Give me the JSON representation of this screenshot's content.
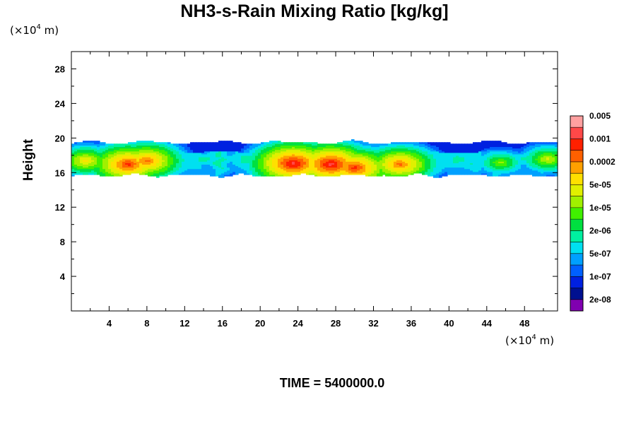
{
  "chart_data": {
    "type": "heatmap",
    "title": "NH3-s-Rain Mixing Ratio [kg/kg]",
    "xlabel": "",
    "ylabel": "Height",
    "x_unit": {
      "prefix": "(×10",
      "exp": "4",
      "suffix": " m)"
    },
    "y_unit": {
      "prefix": "(×10",
      "exp": "4",
      "suffix": " m)"
    },
    "xlim": [
      0,
      51.5
    ],
    "ylim": [
      0,
      30
    ],
    "xticks": [
      4,
      8,
      12,
      16,
      20,
      24,
      28,
      32,
      36,
      40,
      44,
      48
    ],
    "yticks": [
      4,
      8,
      12,
      16,
      20,
      24,
      28
    ],
    "time_label": "TIME = 5400000.0",
    "colorbar": {
      "colors": [
        "#8000b0",
        "#001090",
        "#0020e0",
        "#0060ff",
        "#00a0ff",
        "#00e0f0",
        "#00f0a0",
        "#00e040",
        "#40f000",
        "#a0f000",
        "#e0f000",
        "#ffe000",
        "#ffa000",
        "#ff6000",
        "#ff2000",
        "#ff4848",
        "#ffa0a0"
      ],
      "labels": [
        "2e-08",
        "1e-07",
        "5e-07",
        "2e-06",
        "1e-05",
        "5e-05",
        "0.0002",
        "0.001",
        "0.005"
      ]
    },
    "band": {
      "y_bottom_approx": 15.5,
      "y_top_approx": 19.8,
      "hotspots": [
        {
          "x": 6.0,
          "y": 17.0,
          "level": 14
        },
        {
          "x": 8.0,
          "y": 17.4,
          "level": 13
        },
        {
          "x": 1.5,
          "y": 17.4,
          "level": 11
        },
        {
          "x": 23.5,
          "y": 17.1,
          "level": 15
        },
        {
          "x": 27.5,
          "y": 17.0,
          "level": 15
        },
        {
          "x": 30.0,
          "y": 16.6,
          "level": 14
        },
        {
          "x": 34.8,
          "y": 17.0,
          "level": 13
        },
        {
          "x": 45.5,
          "y": 17.2,
          "level": 9
        },
        {
          "x": 50.5,
          "y": 17.6,
          "level": 10
        }
      ]
    }
  }
}
